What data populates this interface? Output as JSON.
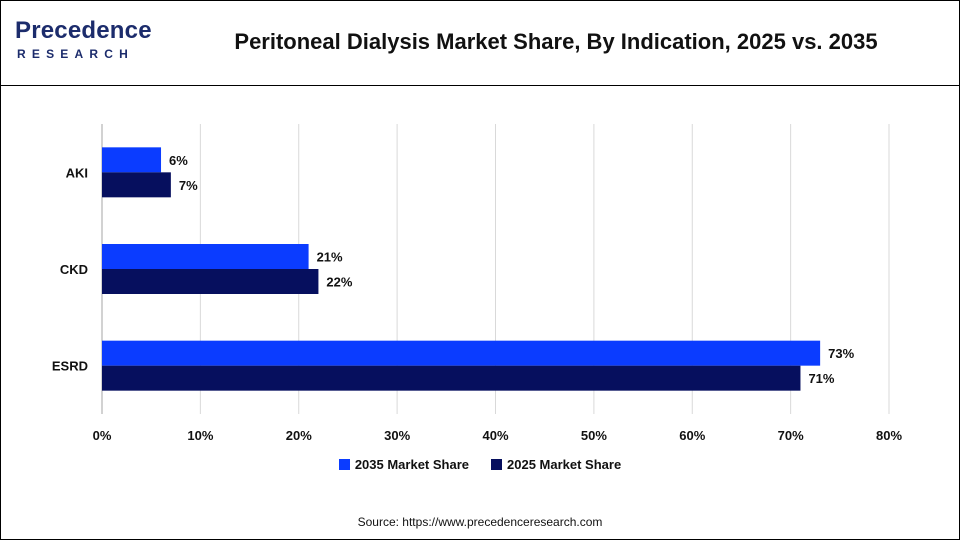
{
  "header": {
    "logo_top": "Precedence",
    "logo_bottom": "RESEARCH",
    "title": "Peritoneal Dialysis Market Share, By Indication, 2025 vs. 2035"
  },
  "colors": {
    "series_2035": "#0b3cff",
    "series_2025": "#060f5e",
    "grid": "#d9d9d9",
    "axis": "#a6a6a6",
    "logo": "#1c2c6c"
  },
  "icons": {
    "logo_mark": "precedence-research-logo"
  },
  "chart_data": {
    "type": "bar",
    "orientation": "horizontal",
    "categories": [
      "AKI",
      "CKD",
      "ESRD"
    ],
    "series": [
      {
        "name": "2035 Market Share",
        "values": [
          6,
          21,
          73
        ],
        "labels": [
          "6%",
          "21%",
          "73%"
        ]
      },
      {
        "name": "2025 Market Share",
        "values": [
          7,
          22,
          71
        ],
        "labels": [
          "7%",
          "22%",
          "71%"
        ]
      }
    ],
    "xlim": [
      0,
      80
    ],
    "x_ticks": [
      0,
      10,
      20,
      30,
      40,
      50,
      60,
      70,
      80
    ],
    "x_tick_labels": [
      "0%",
      "10%",
      "20%",
      "30%",
      "40%",
      "50%",
      "60%",
      "70%",
      "80%"
    ],
    "grid": true,
    "legend_position": "bottom"
  },
  "source": "Source: https://www.precedenceresearch.com"
}
